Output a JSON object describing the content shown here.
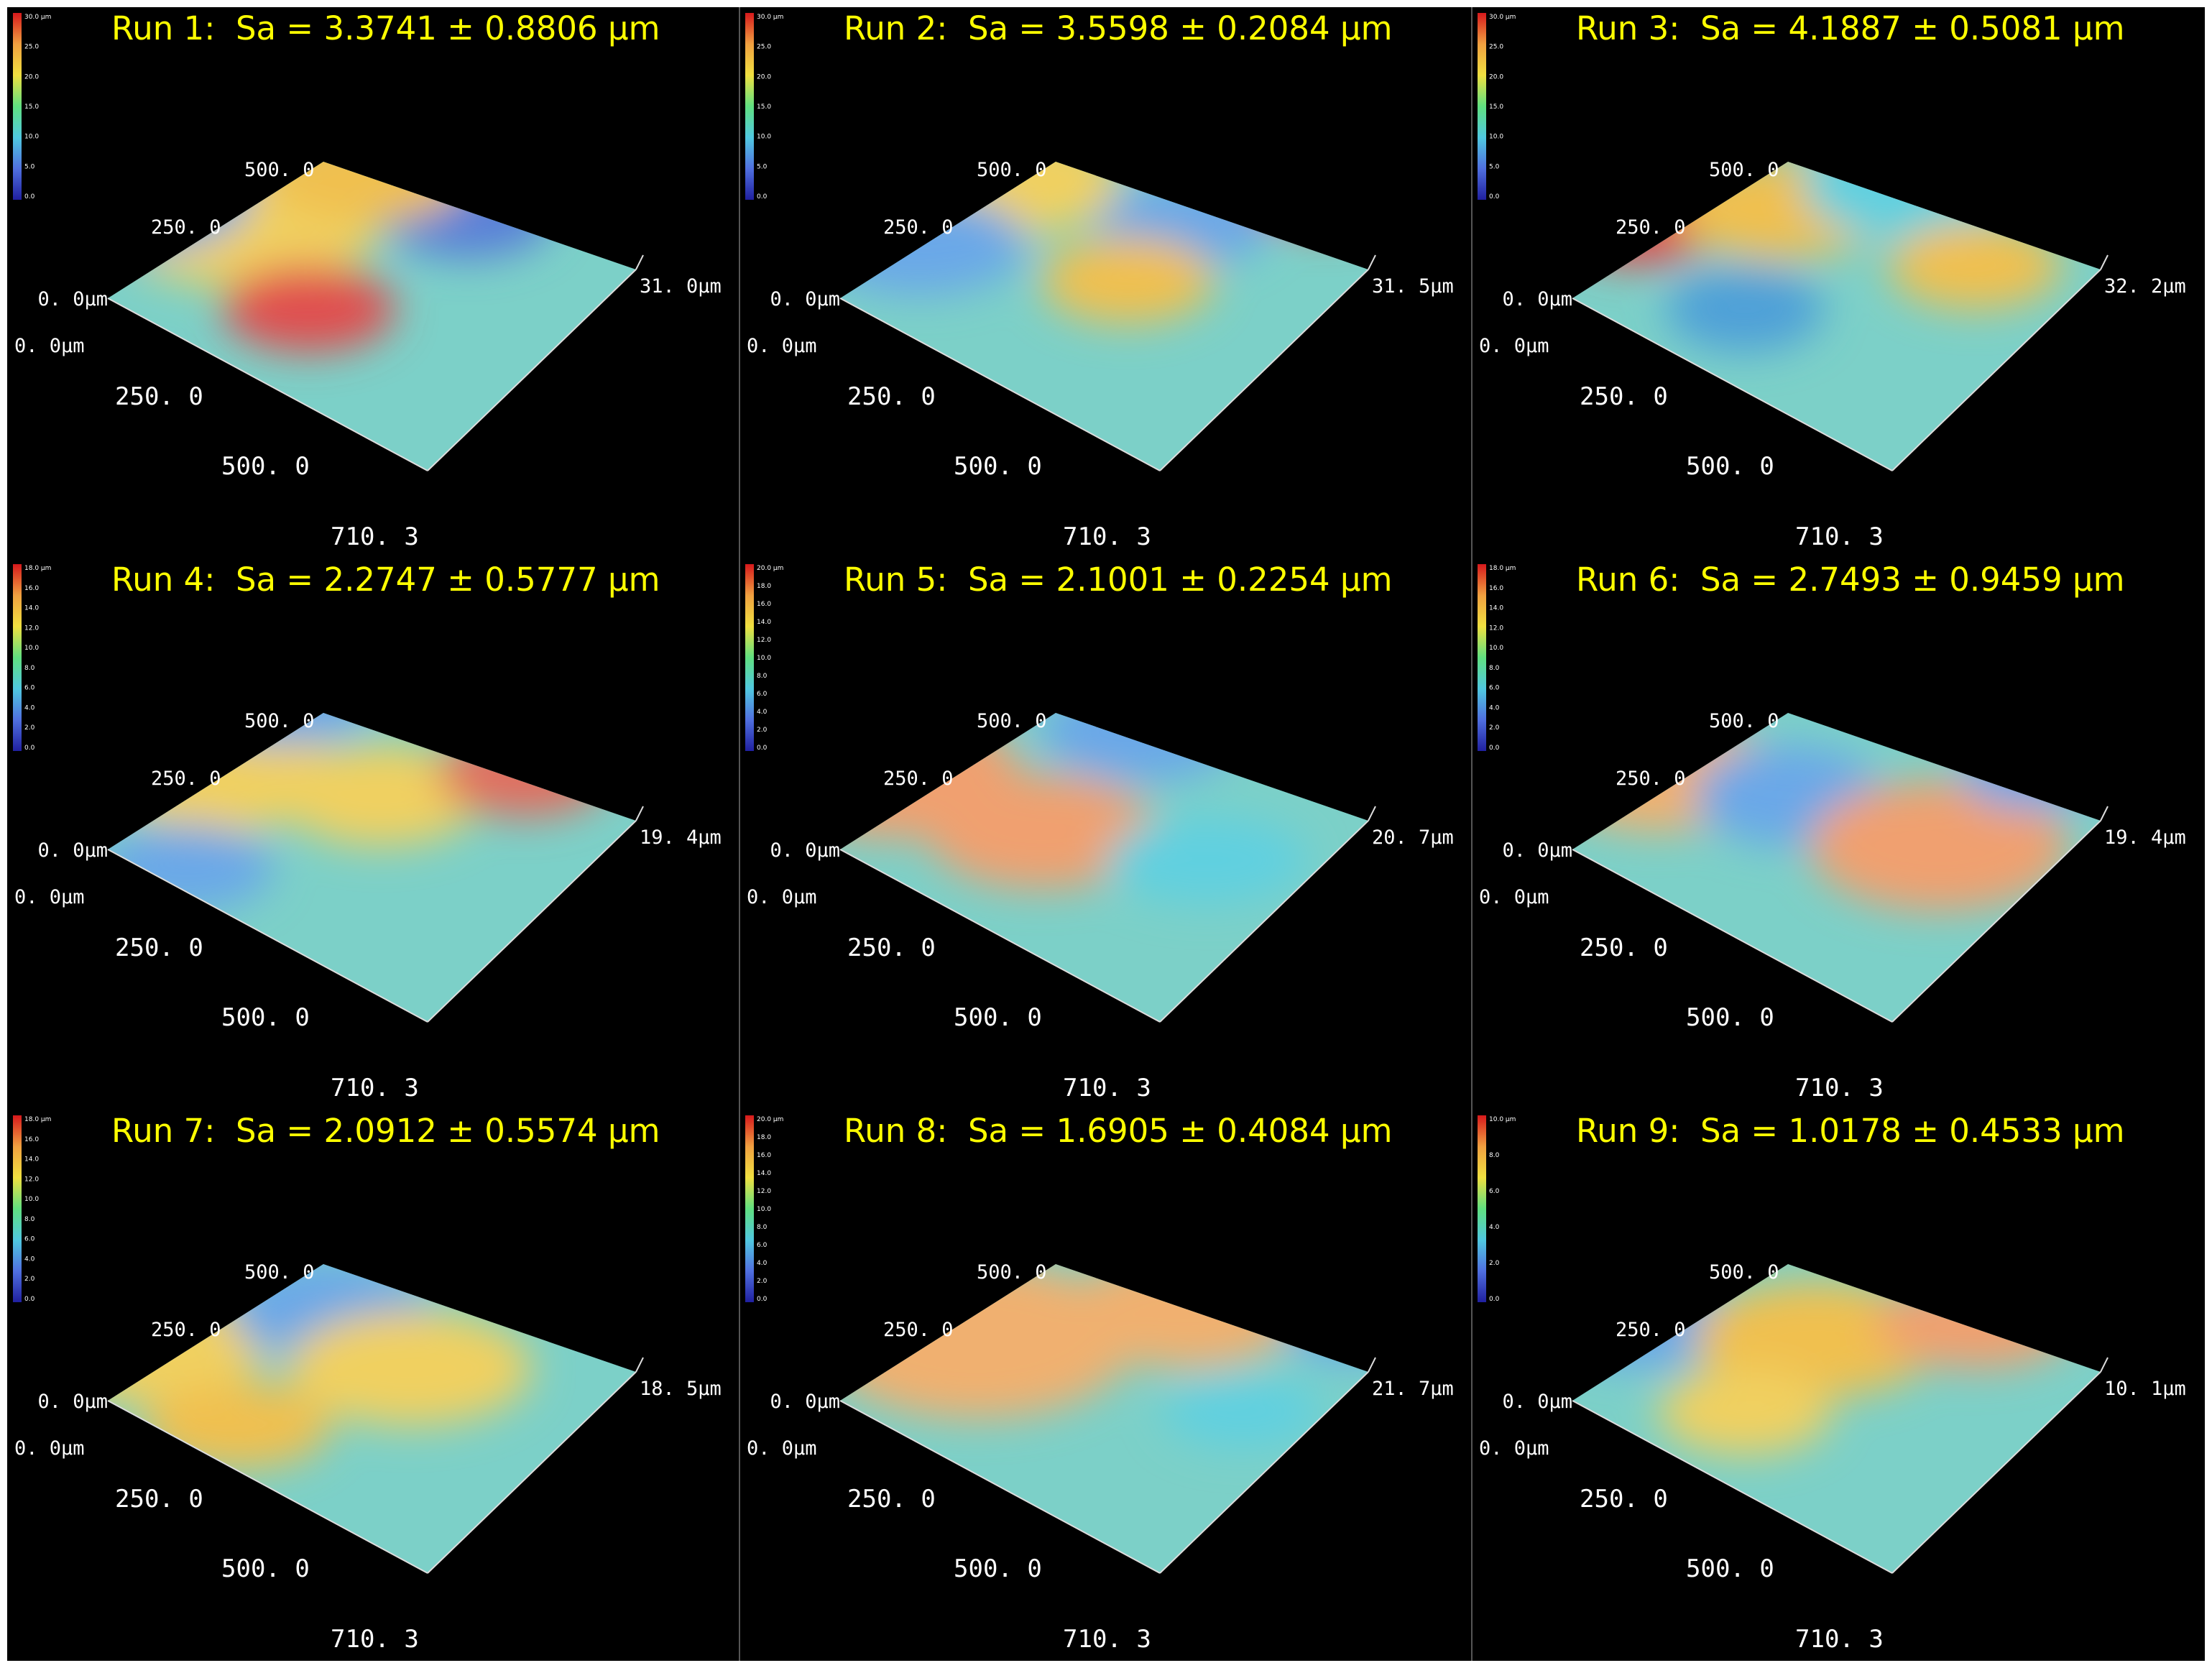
{
  "panels": [
    {
      "title": "Run 1:  Sa = 3.3741 ± 0.8806 µm",
      "scale_top": "30.0 µm",
      "scale_ticks": [
        "30.0",
        "25.0",
        "20.0",
        "15.0",
        "10.0",
        "5.0",
        "0.0"
      ],
      "x_origin": "0. 0µm",
      "x_mid": "250. 0",
      "x_end": "500. 0",
      "x_far": "710. 3",
      "y_origin": "0. 0µm",
      "y_mid": "250. 0",
      "y_end": "500. 0",
      "z_max": "31. 0µm"
    },
    {
      "title": "Run 2:  Sa = 3.5598 ± 0.2084 µm",
      "scale_top": "30.0 µm",
      "scale_ticks": [
        "30.0",
        "25.0",
        "20.0",
        "15.0",
        "10.0",
        "5.0",
        "0.0"
      ],
      "x_origin": "0. 0µm",
      "x_mid": "250. 0",
      "x_end": "500. 0",
      "x_far": "710. 3",
      "y_origin": "0. 0µm",
      "y_mid": "250. 0",
      "y_end": "500. 0",
      "z_max": "31. 5µm"
    },
    {
      "title": "Run 3:  Sa = 4.1887 ± 0.5081 µm",
      "scale_top": "30.0 µm",
      "scale_ticks": [
        "30.0",
        "25.0",
        "20.0",
        "15.0",
        "10.0",
        "5.0",
        "0.0"
      ],
      "x_origin": "0. 0µm",
      "x_mid": "250. 0",
      "x_end": "500. 0",
      "x_far": "710. 3",
      "y_origin": "0. 0µm",
      "y_mid": "250. 0",
      "y_end": "500. 0",
      "z_max": "32. 2µm"
    },
    {
      "title": "Run 4:  Sa = 2.2747 ± 0.5777 µm",
      "scale_top": "18.0 µm",
      "scale_ticks": [
        "18.0",
        "16.0",
        "14.0",
        "12.0",
        "10.0",
        "8.0",
        "6.0",
        "4.0",
        "2.0",
        "0.0"
      ],
      "x_origin": "0. 0µm",
      "x_mid": "250. 0",
      "x_end": "500. 0",
      "x_far": "710. 3",
      "y_origin": "0. 0µm",
      "y_mid": "250. 0",
      "y_end": "500. 0",
      "z_max": "19. 4µm"
    },
    {
      "title": "Run 5:  Sa = 2.1001 ± 0.2254 µm",
      "scale_top": "20.0 µm",
      "scale_ticks": [
        "20.0",
        "18.0",
        "16.0",
        "14.0",
        "12.0",
        "10.0",
        "8.0",
        "6.0",
        "4.0",
        "2.0",
        "0.0"
      ],
      "x_origin": "0. 0µm",
      "x_mid": "250. 0",
      "x_end": "500. 0",
      "x_far": "710. 3",
      "y_origin": "0. 0µm",
      "y_mid": "250. 0",
      "y_end": "500. 0",
      "z_max": "20. 7µm"
    },
    {
      "title": "Run 6:  Sa = 2.7493 ± 0.9459 µm",
      "scale_top": "18.0 µm",
      "scale_ticks": [
        "18.0",
        "16.0",
        "14.0",
        "12.0",
        "10.0",
        "8.0",
        "6.0",
        "4.0",
        "2.0",
        "0.0"
      ],
      "x_origin": "0. 0µm",
      "x_mid": "250. 0",
      "x_end": "500. 0",
      "x_far": "710. 3",
      "y_origin": "0. 0µm",
      "y_mid": "250. 0",
      "y_end": "500. 0",
      "z_max": "19. 4µm"
    },
    {
      "title": "Run 7:  Sa = 2.0912 ± 0.5574 µm",
      "scale_top": "18.0 µm",
      "scale_ticks": [
        "18.0",
        "16.0",
        "14.0",
        "12.0",
        "10.0",
        "8.0",
        "6.0",
        "4.0",
        "2.0",
        "0.0"
      ],
      "x_origin": "0. 0µm",
      "x_mid": "250. 0",
      "x_end": "500. 0",
      "x_far": "710. 3",
      "y_origin": "0. 0µm",
      "y_mid": "250. 0",
      "y_end": "500. 0",
      "z_max": "18. 5µm"
    },
    {
      "title": "Run 8:  Sa = 1.6905 ± 0.4084 µm",
      "scale_top": "20.0 µm",
      "scale_ticks": [
        "20.0",
        "18.0",
        "16.0",
        "14.0",
        "12.0",
        "10.0",
        "8.0",
        "6.0",
        "4.0",
        "2.0",
        "0.0"
      ],
      "x_origin": "0. 0µm",
      "x_mid": "250. 0",
      "x_end": "500. 0",
      "x_far": "710. 3",
      "y_origin": "0. 0µm",
      "y_mid": "250. 0",
      "y_end": "500. 0",
      "z_max": "21. 7µm"
    },
    {
      "title": "Run 9:  Sa = 1.0178 ± 0.4533 µm",
      "scale_top": "10.0 µm",
      "scale_ticks": [
        "10.0",
        "8.0",
        "6.0",
        "4.0",
        "2.0",
        "0.0"
      ],
      "x_origin": "0. 0µm",
      "x_mid": "250. 0",
      "x_end": "500. 0",
      "x_far": "710. 3",
      "y_origin": "0. 0µm",
      "y_mid": "250. 0",
      "y_end": "500. 0",
      "z_max": "10. 1µm"
    }
  ],
  "colors": {
    "title": "#ffff00",
    "background": "#000000",
    "axis_labels": "#ffffff",
    "colormap": [
      "#d7191c",
      "#f0a040",
      "#f0e040",
      "#60e080",
      "#50c8e0",
      "#5070e0",
      "#2020a0"
    ]
  }
}
